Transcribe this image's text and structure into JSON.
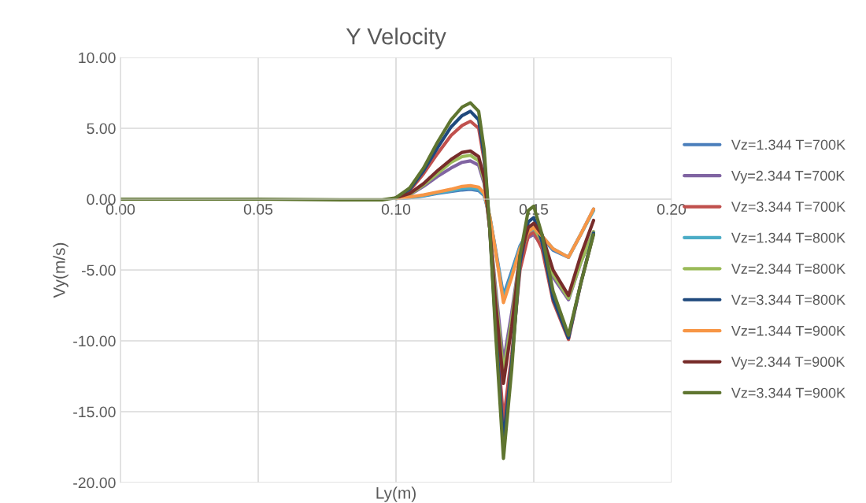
{
  "chart_data": {
    "type": "line",
    "title": "Y Velocity",
    "xlabel": "Ly(m)",
    "ylabel": "Vy(m/s)",
    "x": [
      0,
      0.05,
      0.08,
      0.095,
      0.1,
      0.105,
      0.11,
      0.115,
      0.12,
      0.124,
      0.127,
      0.13,
      0.132,
      0.134,
      0.136,
      0.139,
      0.142,
      0.145,
      0.148,
      0.15,
      0.153,
      0.157,
      0.1626,
      0.167,
      0.1717
    ],
    "series": [
      {
        "name": "Vz=1.344 T=700K",
        "color": "#4a7ebb",
        "values": [
          null,
          null,
          null,
          null,
          0.05,
          0.1,
          0.22,
          0.4,
          0.55,
          0.65,
          0.7,
          0.6,
          0.25,
          -1.2,
          -3.4,
          -6.8,
          -5.1,
          -3.3,
          -2.3,
          -2.2,
          -2.7,
          -3.6,
          -4.1,
          -2.5,
          -0.7
        ]
      },
      {
        "name": "Vy=2.344 T=700K",
        "color": "#8064a2",
        "values": [
          null,
          null,
          null,
          null,
          0.1,
          0.3,
          0.9,
          1.6,
          2.2,
          2.6,
          2.7,
          2.4,
          1.1,
          -2,
          -6,
          -11.5,
          -8,
          -4,
          -2.7,
          -2.5,
          -3.3,
          -5.5,
          -7.1,
          -4.5,
          -2.3
        ]
      },
      {
        "name": "Vz=3.344 T=700K",
        "color": "#c0504d",
        "values": [
          null,
          null,
          null,
          null,
          0.1,
          0.6,
          1.8,
          3.2,
          4.5,
          5.2,
          5.5,
          5.0,
          2.7,
          -2,
          -8,
          -15.6,
          -11,
          -5,
          -2.6,
          -2.3,
          -3.5,
          -7.2,
          -9.9,
          -6,
          -2.4
        ]
      },
      {
        "name": "Vz=1.344 T=800K",
        "color": "#4bacc6",
        "values": [
          null,
          null,
          null,
          null,
          0.05,
          0.12,
          0.25,
          0.45,
          0.6,
          0.75,
          0.8,
          0.7,
          0.3,
          -1.2,
          -3.5,
          -7.0,
          -5.3,
          -3.4,
          -2.3,
          -2.1,
          -2.6,
          -3.5,
          -4.1,
          -2.5,
          -0.8
        ]
      },
      {
        "name": "Vz=2.344 T=800K",
        "color": "#9bbb59",
        "values": [
          null,
          null,
          null,
          null,
          0.1,
          0.35,
          1.0,
          1.8,
          2.6,
          3.0,
          3.1,
          2.7,
          1.3,
          -2,
          -6.5,
          -12.2,
          -8.5,
          -4,
          -2.2,
          -2.0,
          -3,
          -5.3,
          -7.0,
          -4.5,
          -2.3
        ]
      },
      {
        "name": "Vz=3.344 T=800K",
        "color": "#1f497d",
        "values": [
          null,
          null,
          null,
          null,
          0.1,
          0.7,
          2.0,
          3.6,
          5.1,
          5.9,
          6.2,
          5.6,
          3.0,
          -2,
          -8.5,
          -17.1,
          -11.5,
          -4.5,
          -1.6,
          -1.3,
          -3,
          -7,
          -9.8,
          -6,
          -2.4
        ]
      },
      {
        "name": "Vz=1.344 T=900K",
        "color": "#f79646",
        "values": [
          null,
          null,
          null,
          null,
          0.05,
          0.15,
          0.3,
          0.5,
          0.7,
          0.9,
          0.95,
          0.85,
          0.4,
          -1.2,
          -3.5,
          -7.3,
          -5.5,
          -3.5,
          -2.3,
          -2.0,
          -2.6,
          -3.5,
          -4.1,
          -2.5,
          -0.7
        ]
      },
      {
        "name": "Vy=2.344 T=900K",
        "color": "#772c2a",
        "values": [
          null,
          null,
          null,
          null,
          0.1,
          0.4,
          1.1,
          2.0,
          2.8,
          3.3,
          3.4,
          3.0,
          1.5,
          -2,
          -7,
          -13.0,
          -9,
          -4,
          -2,
          -1.7,
          -2.5,
          -5,
          -6.8,
          -4,
          -1.5
        ]
      },
      {
        "name": "Vz=3.344 T=900K",
        "color": "#5f7530",
        "values": [
          0,
          0,
          -0.05,
          -0.05,
          0.1,
          0.8,
          2.2,
          4.0,
          5.6,
          6.5,
          6.8,
          6.2,
          3.5,
          -2,
          -9,
          -18.3,
          -12,
          -4,
          -0.8,
          -0.5,
          -2.5,
          -6.5,
          -9.6,
          -6,
          -2.5
        ]
      }
    ],
    "xlim": [
      0,
      0.2
    ],
    "xticks": [
      {
        "value": 0,
        "label": "0.00"
      },
      {
        "value": 0.05,
        "label": "0.05"
      },
      {
        "value": 0.1,
        "label": "0.10"
      },
      {
        "value": 0.15,
        "label": "0.15"
      },
      {
        "value": 0.2,
        "label": "0.20"
      }
    ],
    "ylim": [
      -20,
      10
    ],
    "yticks": [
      {
        "value": -20,
        "label": "-20.00"
      },
      {
        "value": -15,
        "label": "-15.00"
      },
      {
        "value": -10,
        "label": "-10.00"
      },
      {
        "value": -5,
        "label": "-5.00"
      },
      {
        "value": 0,
        "label": "0.00"
      },
      {
        "value": 5,
        "label": "5.00"
      },
      {
        "value": 10,
        "label": "10.00"
      }
    ],
    "grid": true,
    "legend": "right",
    "marker": "none",
    "line_style": "solid"
  }
}
